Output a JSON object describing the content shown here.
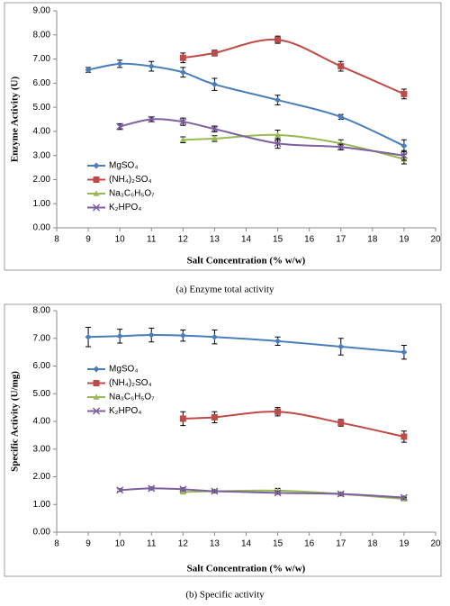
{
  "chart_data": [
    {
      "type": "line",
      "caption": "(a)  Enzyme total activity",
      "x_label": "Salt Concentration (% w/w)",
      "y_label": "Enzyme Activity (U)",
      "xlim": [
        8,
        20
      ],
      "xticks": [
        8,
        9,
        10,
        11,
        12,
        13,
        14,
        15,
        16,
        17,
        18,
        19,
        20
      ],
      "ylim": [
        0,
        9
      ],
      "yticks": [
        {
          "value": 0,
          "label": "0.00"
        },
        {
          "value": 1,
          "label": "1.00"
        },
        {
          "value": 2,
          "label": "2.00"
        },
        {
          "value": 3,
          "label": "3.00"
        },
        {
          "value": 4,
          "label": "4.00"
        },
        {
          "value": 5,
          "label": "5.00"
        },
        {
          "value": 6,
          "label": "6.00"
        },
        {
          "value": 7,
          "label": "7.00"
        },
        {
          "value": 8,
          "label": "8.00"
        },
        {
          "value": 9,
          "label": "9.00"
        }
      ],
      "legend": "left",
      "smooth": true,
      "series": [
        {
          "name": "MgSO₄",
          "color": "#4a7ebb",
          "marker": "diamond",
          "x": [
            9,
            10,
            11,
            12,
            13,
            15,
            17,
            19
          ],
          "values": [
            6.55,
            6.8,
            6.7,
            6.45,
            5.95,
            5.3,
            4.6,
            3.4
          ],
          "errors": [
            0.1,
            0.15,
            0.2,
            0.2,
            0.25,
            0.2,
            0.1,
            0.25
          ]
        },
        {
          "name": "(NH₄)₂SO₄",
          "color": "#be4b48",
          "marker": "square",
          "x": [
            12,
            13,
            15,
            17,
            19
          ],
          "values": [
            7.05,
            7.25,
            7.8,
            6.7,
            5.55
          ],
          "errors": [
            0.2,
            0.12,
            0.15,
            0.2,
            0.2
          ]
        },
        {
          "name": "Na₃C₆H₅O₇",
          "color": "#98b954",
          "marker": "triangle",
          "x": [
            12,
            13,
            15,
            17,
            19
          ],
          "values": [
            3.65,
            3.7,
            3.85,
            3.5,
            2.85
          ],
          "errors": [
            0.12,
            0.12,
            0.2,
            0.15,
            0.2
          ]
        },
        {
          "name": "K₂HPO₄",
          "color": "#7d60a0",
          "marker": "x",
          "x": [
            10,
            11,
            12,
            13,
            15,
            17,
            19
          ],
          "values": [
            4.2,
            4.5,
            4.4,
            4.1,
            3.5,
            3.35,
            3.0
          ],
          "errors": [
            0.12,
            0.1,
            0.15,
            0.12,
            0.2,
            0.12,
            0.2
          ]
        }
      ]
    },
    {
      "type": "line",
      "caption": "(b) Specific activity",
      "x_label": "Salt Concentration (% w/w)",
      "y_label": "Specific Activity (U/mg)",
      "xlim": [
        8,
        20
      ],
      "xticks": [
        8,
        9,
        10,
        11,
        12,
        13,
        14,
        15,
        16,
        17,
        18,
        19,
        20
      ],
      "ylim": [
        0,
        8
      ],
      "yticks": [
        {
          "value": 0,
          "label": "0.00"
        },
        {
          "value": 1,
          "label": "1.00"
        },
        {
          "value": 2,
          "label": "2.00"
        },
        {
          "value": 3,
          "label": "3.00"
        },
        {
          "value": 4,
          "label": "4.00"
        },
        {
          "value": 5,
          "label": "5.00"
        },
        {
          "value": 6,
          "label": "6.00"
        },
        {
          "value": 7,
          "label": "7.00"
        },
        {
          "value": 8,
          "label": "8.00"
        }
      ],
      "legend": "left",
      "smooth": true,
      "series": [
        {
          "name": "MgSO₄",
          "color": "#4a7ebb",
          "marker": "diamond",
          "x": [
            9,
            10,
            11,
            12,
            13,
            15,
            17,
            19
          ],
          "values": [
            7.05,
            7.08,
            7.12,
            7.1,
            7.05,
            6.9,
            6.7,
            6.5
          ],
          "errors": [
            0.35,
            0.25,
            0.25,
            0.2,
            0.25,
            0.15,
            0.3,
            0.25
          ]
        },
        {
          "name": "(NH₄)₂SO₄",
          "color": "#be4b48",
          "marker": "square",
          "x": [
            12,
            13,
            15,
            17,
            19
          ],
          "values": [
            4.1,
            4.15,
            4.35,
            3.95,
            3.45
          ],
          "errors": [
            0.25,
            0.2,
            0.15,
            0.12,
            0.2
          ]
        },
        {
          "name": "Na₃C₆H₅O₇",
          "color": "#98b954",
          "marker": "triangle",
          "x": [
            12,
            13,
            15,
            17,
            19
          ],
          "values": [
            1.45,
            1.48,
            1.5,
            1.38,
            1.2
          ],
          "errors": [
            0.05,
            0.05,
            0.08,
            0.05,
            0.05
          ]
        },
        {
          "name": "K₂HPO₄",
          "color": "#7d60a0",
          "marker": "x",
          "x": [
            10,
            11,
            12,
            13,
            15,
            17,
            19
          ],
          "values": [
            1.52,
            1.58,
            1.55,
            1.48,
            1.42,
            1.38,
            1.25
          ],
          "errors": [
            0.05,
            0.05,
            0.05,
            0.05,
            0.05,
            0.05,
            0.05
          ]
        }
      ]
    }
  ]
}
